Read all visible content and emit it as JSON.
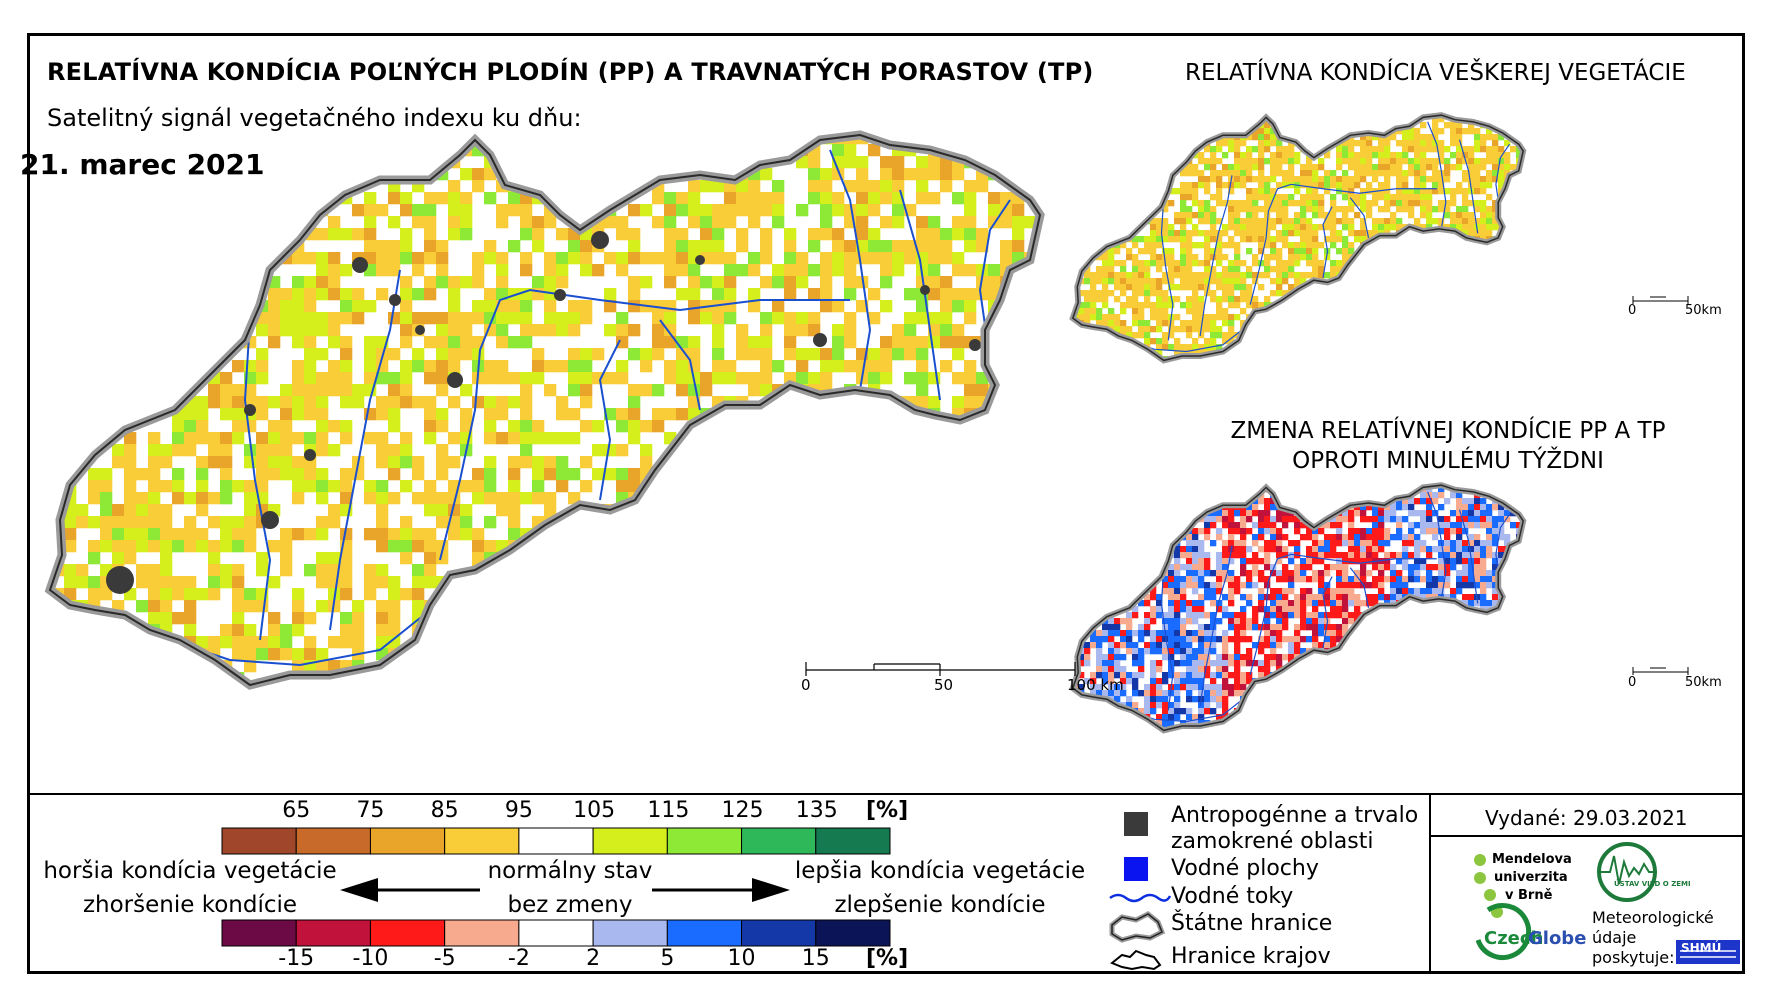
{
  "titles": {
    "main": "RELATÍVNA KONDÍCIA POĽNÝCH PLODÍN (PP) A TRAVNATÝCH PORASTOV (TP)",
    "subtitle": "Satelitný signál vegetačného indexu ku dňu:",
    "date": "21. marec 2021",
    "right": "RELATÍVNA KONDÍCIA VEŠKEREJ VEGETÁCIE",
    "change_line1": "ZMENA RELATÍVNEJ KONDÍCIE PP A TP",
    "change_line2": "OPROTI MINULÉMU TÝŽDNI"
  },
  "scalebars": {
    "main": {
      "l0": "0",
      "l1": "50",
      "l2": "100 km"
    },
    "top_inset": {
      "l0": "0",
      "l1": "50km"
    },
    "bottom_inset": {
      "l0": "0",
      "l1": "50km"
    }
  },
  "legend": {
    "condition_labels": [
      "65",
      "75",
      "85",
      "95",
      "105",
      "115",
      "125",
      "135"
    ],
    "condition_unit": "[%]",
    "condition_colors": [
      "#a0462a",
      "#c86b2a",
      "#e9a52a",
      "#f9cd38",
      "#ffffff",
      "#d4ef1c",
      "#8ee836",
      "#2fb85a",
      "#157a4f"
    ],
    "change_labels": [
      "-15",
      "-10",
      "-5",
      "-2",
      "2",
      "5",
      "10",
      "15"
    ],
    "change_unit": "[%]",
    "change_colors": [
      "#6b0a45",
      "#c1123c",
      "#ff1a1a",
      "#f8aa8e",
      "#ffffff",
      "#a9b9f0",
      "#1a6bff",
      "#1538a8",
      "#0b1456"
    ],
    "worse_line1": "horšia kondícia vegetácie",
    "worse_line2": "zhoršenie kondície",
    "normal_line1": "normálny stav",
    "normal_line2": "bez zmeny",
    "better_line1": "lepšia kondícia vegetácie",
    "better_line2": "zlepšenie kondície"
  },
  "symbols": {
    "anthropogenic_line1": "Antropogénne a trvalo",
    "anthropogenic_line2": "zamokrené oblasti",
    "water_bodies": "Vodné plochy",
    "rivers": "Vodné toky",
    "state_border": "Štátne hranice",
    "region_border": "Hranice krajov"
  },
  "issued": "Vydané: 29.03.2021",
  "logos": {
    "mendel_line1": "Mendelova",
    "mendel_line2": "univerzita",
    "mendel_line3": "v Brně",
    "czechglobe_a": "Czech",
    "czechglobe_b": "Globe",
    "ustav": "ÚSTAV VIED O ZEMI",
    "met_line1": "Meteorologické",
    "met_line2": "údaje",
    "met_line3": "poskytuje:",
    "shmu": "SHMÚ"
  },
  "map_layers": {
    "main_palette": [
      "#f9cd38",
      "#e9a52a",
      "#d4ef1c",
      "#8ee836",
      "#ffffff"
    ],
    "change_palette": [
      "#ff1a1a",
      "#f8aa8e",
      "#1a6bff",
      "#a9b9f0",
      "#c1123c",
      "#1538a8",
      "#ffffff"
    ],
    "river_color": "#1a4fd0",
    "anthropogenic_color": "#3a3a3a"
  }
}
